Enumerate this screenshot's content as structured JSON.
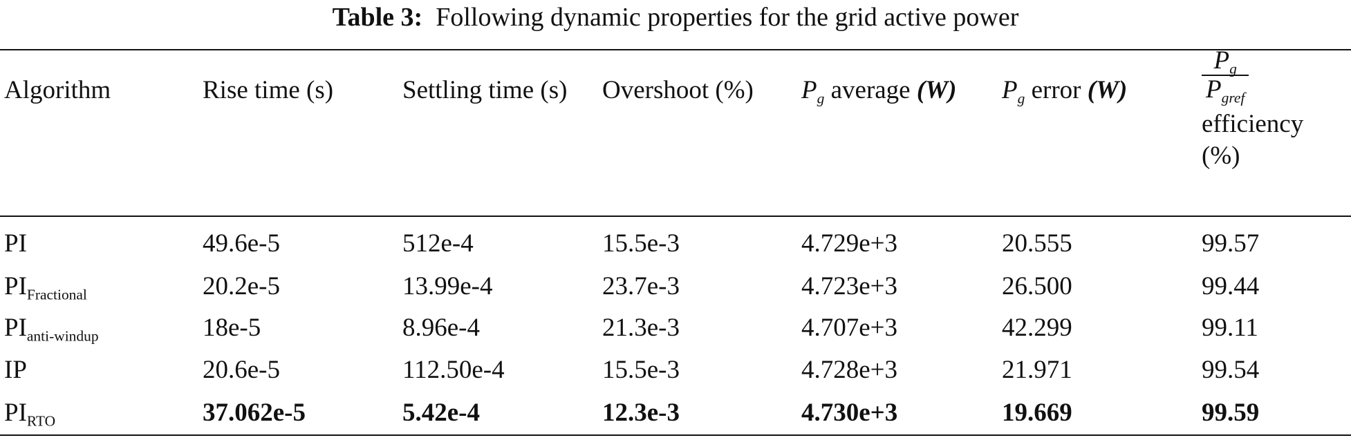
{
  "header": {
    "label": "Table 3:",
    "title": "Following dynamic properties for the grid active power"
  },
  "table": {
    "columns": [
      {
        "text": "Algorithm"
      },
      {
        "text": "Rise time (s)"
      },
      {
        "text": "Settling time (s)"
      },
      {
        "text": "Overshoot (%)"
      },
      {
        "symbol": "P",
        "subscript": "g",
        "text": "average",
        "unit": "(W)"
      },
      {
        "symbol": "P",
        "subscript": "g",
        "text": "error",
        "unit": "(W)"
      },
      {
        "numerator": "P",
        "numerator_subscript": "g",
        "denominator": "P",
        "denominator_subscript": "gref",
        "text": "efficiency",
        "unit": "(%)"
      }
    ],
    "rows": [
      [
        {
          "base": "PI"
        },
        "49.6e-5",
        "512e-4",
        "15.5e-3",
        "4.729e+3",
        "20.555",
        "99.57"
      ],
      [
        {
          "base": "PI",
          "subscript": "Fractional"
        },
        "20.2e-5",
        "13.99e-4",
        "23.7e-3",
        "4.723e+3",
        "26.500",
        "99.44"
      ],
      [
        {
          "base": "PI",
          "subscript": "anti-windup"
        },
        "18e-5",
        "8.96e-4",
        "21.3e-3",
        "4.707e+3",
        "42.299",
        "99.11"
      ],
      [
        {
          "base": "IP"
        },
        "20.6e-5",
        "112.50e-4",
        "15.5e-3",
        "4.728e+3",
        "21.971",
        "99.54"
      ],
      [
        {
          "base": "PI",
          "subscript": "RTO"
        },
        "37.062e-5",
        "5.42e-4",
        "12.3e-3",
        "4.730e+3",
        "19.669",
        "99.59"
      ]
    ]
  }
}
